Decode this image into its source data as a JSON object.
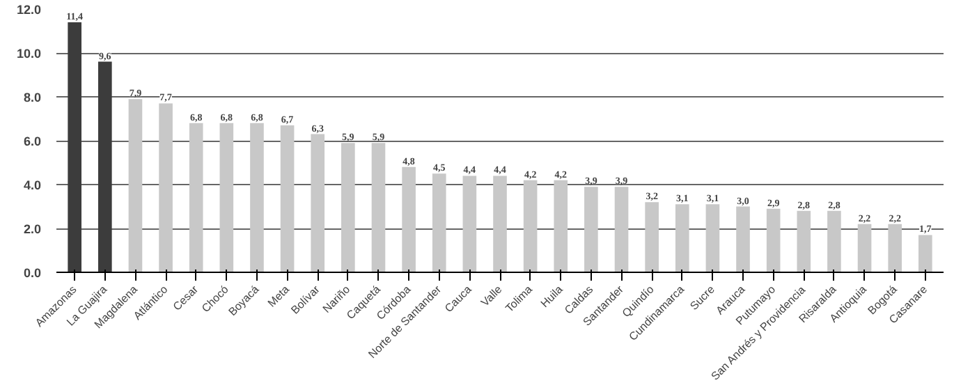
{
  "chart_data": {
    "type": "bar",
    "categories": [
      "Amazonas",
      "La Guajira",
      "Magdalena",
      "Atlántico",
      "Cesar",
      "Chocó",
      "Boyacá",
      "Meta",
      "Bolívar",
      "Nariño",
      "Caquetá",
      "Córdoba",
      "Norte de Santander",
      "Cauca",
      "Valle",
      "Tolima",
      "Huila",
      "Caldas",
      "Santander",
      "Quindío",
      "Cundinamarca",
      "Sucre",
      "Arauca",
      "Putumayo",
      "San Andrés y Providencia",
      "Risaralda",
      "Antioquia",
      "Bogotá",
      "Casanare"
    ],
    "values": [
      11.4,
      9.6,
      7.9,
      7.7,
      6.8,
      6.8,
      6.8,
      6.7,
      6.3,
      5.9,
      5.9,
      4.8,
      4.5,
      4.4,
      4.4,
      4.2,
      4.2,
      3.9,
      3.9,
      3.2,
      3.1,
      3.1,
      3.0,
      2.9,
      2.8,
      2.8,
      2.2,
      2.2,
      1.7
    ],
    "value_labels": [
      "11,4",
      "9,6",
      "7,9",
      "7,7",
      "6,8",
      "6,8",
      "6,8",
      "6,7",
      "6,3",
      "5,9",
      "5,9",
      "4,8",
      "4,5",
      "4,4",
      "4,4",
      "4,2",
      "4,2",
      "3,9",
      "3,9",
      "3,2",
      "3,1",
      "3,1",
      "3,0",
      "2,9",
      "2,8",
      "2,8",
      "2,2",
      "2,2",
      "1,7"
    ],
    "colors": [
      "#3c3c3c",
      "#3c3c3c",
      "#c8c8c8",
      "#c8c8c8",
      "#c8c8c8",
      "#c8c8c8",
      "#c8c8c8",
      "#c8c8c8",
      "#c8c8c8",
      "#c8c8c8",
      "#c8c8c8",
      "#c8c8c8",
      "#c8c8c8",
      "#c8c8c8",
      "#c8c8c8",
      "#c8c8c8",
      "#c8c8c8",
      "#c8c8c8",
      "#c8c8c8",
      "#c8c8c8",
      "#c8c8c8",
      "#c8c8c8",
      "#c8c8c8",
      "#c8c8c8",
      "#c8c8c8",
      "#c8c8c8",
      "#c8c8c8",
      "#c8c8c8",
      "#c8c8c8"
    ],
    "ylim": [
      0,
      12
    ],
    "yticks": [
      {
        "value": 0,
        "label": "0.0"
      },
      {
        "value": 2,
        "label": "2.0"
      },
      {
        "value": 4,
        "label": "4.0"
      },
      {
        "value": 6,
        "label": "6.0"
      },
      {
        "value": 8,
        "label": "8.0"
      },
      {
        "value": 10,
        "label": "10.0"
      },
      {
        "value": 12,
        "label": "12.0"
      }
    ],
    "grid": "y"
  }
}
